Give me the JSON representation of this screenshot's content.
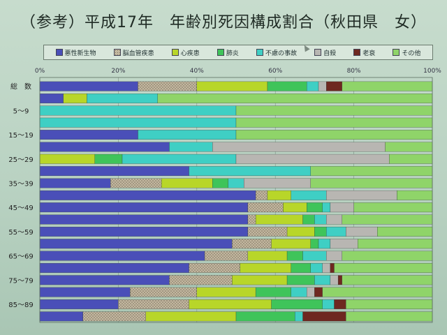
{
  "title": "（参考）平成17年　年齢別死因構成割合（秋田県　女）",
  "chart_data": {
    "type": "bar",
    "orientation": "horizontal",
    "stacked": true,
    "title": "（参考）平成17年　年齢別死因構成割合（秋田県　女）",
    "xlim": [
      0,
      100
    ],
    "x_ticks": [
      "0%",
      "20%",
      "40%",
      "60%",
      "80%",
      "100%"
    ],
    "categories": [
      "総　数",
      "",
      "5～9",
      "",
      "15～19",
      "",
      "25～29",
      "",
      "35～39",
      "",
      "45～49",
      "",
      "55～59",
      "",
      "65～69",
      "",
      "75～79",
      "",
      "85～89",
      ""
    ],
    "grid": true,
    "legend_position": "top",
    "series": [
      {
        "name": "悪性新生物",
        "color": "#4a4fb8",
        "pattern": "solid",
        "values": [
          25,
          6,
          0,
          0,
          25,
          33,
          0,
          38,
          18,
          55,
          53,
          53,
          53,
          49,
          42,
          38,
          33,
          23,
          20,
          11
        ]
      },
      {
        "name": "脳血管疾患",
        "color": "#a89e8a",
        "pattern": "dots",
        "values": [
          15,
          0,
          0,
          0,
          0,
          0,
          0,
          0,
          13,
          3,
          9,
          2,
          10,
          10,
          11,
          13,
          16,
          17,
          18,
          16
        ]
      },
      {
        "name": "心疾患",
        "color": "#b8d629",
        "pattern": "solid",
        "values": [
          18,
          6,
          0,
          0,
          0,
          0,
          14,
          0,
          13,
          6,
          6,
          12,
          7,
          10,
          10,
          13,
          14,
          15,
          21,
          23
        ]
      },
      {
        "name": "肺炎",
        "color": "#3fc45a",
        "pattern": "solid",
        "values": [
          10,
          0,
          0,
          0,
          0,
          0,
          7,
          0,
          4,
          0,
          4,
          3,
          3,
          2,
          4,
          5,
          7,
          9,
          13,
          15
        ]
      },
      {
        "name": "不慮の事故",
        "color": "#3fcfc4",
        "pattern": "solid",
        "values": [
          3,
          18,
          50,
          50,
          25,
          11,
          29,
          31,
          4,
          9,
          2,
          3,
          5,
          3,
          6,
          3,
          4,
          4,
          3,
          2
        ]
      },
      {
        "name": "自殺",
        "color": "#b8b6b2",
        "pattern": "solid",
        "values": [
          2,
          0,
          0,
          0,
          0,
          44,
          39,
          0,
          17,
          18,
          6,
          4,
          8,
          7,
          4,
          2,
          2,
          2,
          0,
          0
        ]
      },
      {
        "name": "老衰",
        "color": "#6e2820",
        "pattern": "solid",
        "values": [
          4,
          0,
          0,
          0,
          0,
          0,
          0,
          0,
          0,
          0,
          0,
          0,
          0,
          0,
          0,
          1,
          1,
          2,
          3,
          11
        ]
      },
      {
        "name": "その他",
        "color": "#8fd469",
        "pattern": "solid",
        "values": [
          23,
          70,
          50,
          50,
          50,
          12,
          11,
          31,
          31,
          9,
          20,
          23,
          14,
          19,
          23,
          25,
          23,
          28,
          22,
          22
        ]
      }
    ]
  }
}
